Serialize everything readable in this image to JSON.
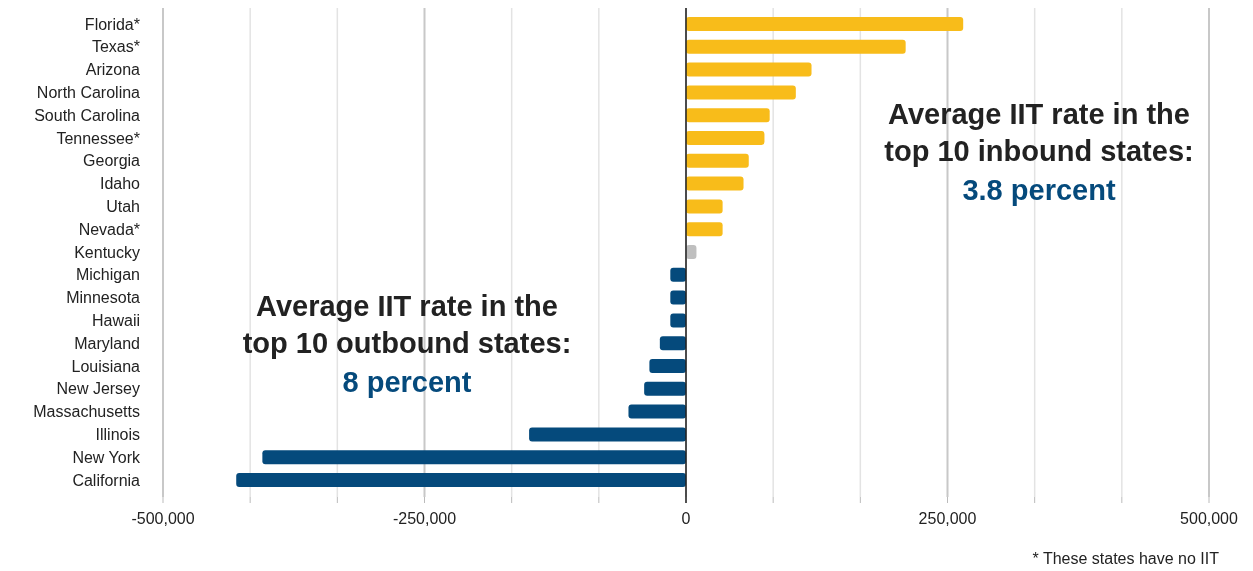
{
  "chart_data": {
    "type": "bar",
    "orientation": "horizontal",
    "categories": [
      "Florida*",
      "Texas*",
      "Arizona",
      "North Carolina",
      "South Carolina",
      "Tennessee*",
      "Georgia",
      "Idaho",
      "Utah",
      "Nevada*",
      "Kentucky",
      "Michigan",
      "Minnesota",
      "Hawaii",
      "Maryland",
      "Louisiana",
      "New Jersey",
      "Massachusetts",
      "Illinois",
      "New York",
      "California"
    ],
    "values": [
      265000,
      210000,
      120000,
      105000,
      80000,
      75000,
      60000,
      55000,
      35000,
      35000,
      10000,
      -15000,
      -15000,
      -15000,
      -25000,
      -35000,
      -40000,
      -55000,
      -150000,
      -405000,
      -430000
    ],
    "colors": [
      "#f8bc1a",
      "#f8bc1a",
      "#f8bc1a",
      "#f8bc1a",
      "#f8bc1a",
      "#f8bc1a",
      "#f8bc1a",
      "#f8bc1a",
      "#f8bc1a",
      "#f8bc1a",
      "#bfbfbf",
      "#054a7c",
      "#054a7c",
      "#054a7c",
      "#054a7c",
      "#054a7c",
      "#054a7c",
      "#054a7c",
      "#054a7c",
      "#054a7c",
      "#054a7c"
    ],
    "xlim": [
      -500000,
      500000
    ],
    "xticks": [
      {
        "value": -500000,
        "label": "-500,000"
      },
      {
        "value": -416667,
        "label": null
      },
      {
        "value": -333333,
        "label": null
      },
      {
        "value": -250000,
        "label": "-250,000"
      },
      {
        "value": -166667,
        "label": null
      },
      {
        "value": -83333,
        "label": null
      },
      0,
      {
        "value": 83333,
        "label": null
      },
      {
        "value": 166667,
        "label": null
      },
      {
        "value": 250000,
        "label": "250,000"
      },
      {
        "value": 333333,
        "label": null
      },
      {
        "value": 416667,
        "label": null
      },
      {
        "value": 500000,
        "label": "500,000"
      }
    ],
    "grid": "x",
    "annotations": [
      "Average IIT rate in the\ntop 10 inbound states:\n3.8 percent",
      "Average IIT rate in the\ntop 10 outbound states:\n8 percent",
      "* These states have no IIT"
    ]
  }
}
